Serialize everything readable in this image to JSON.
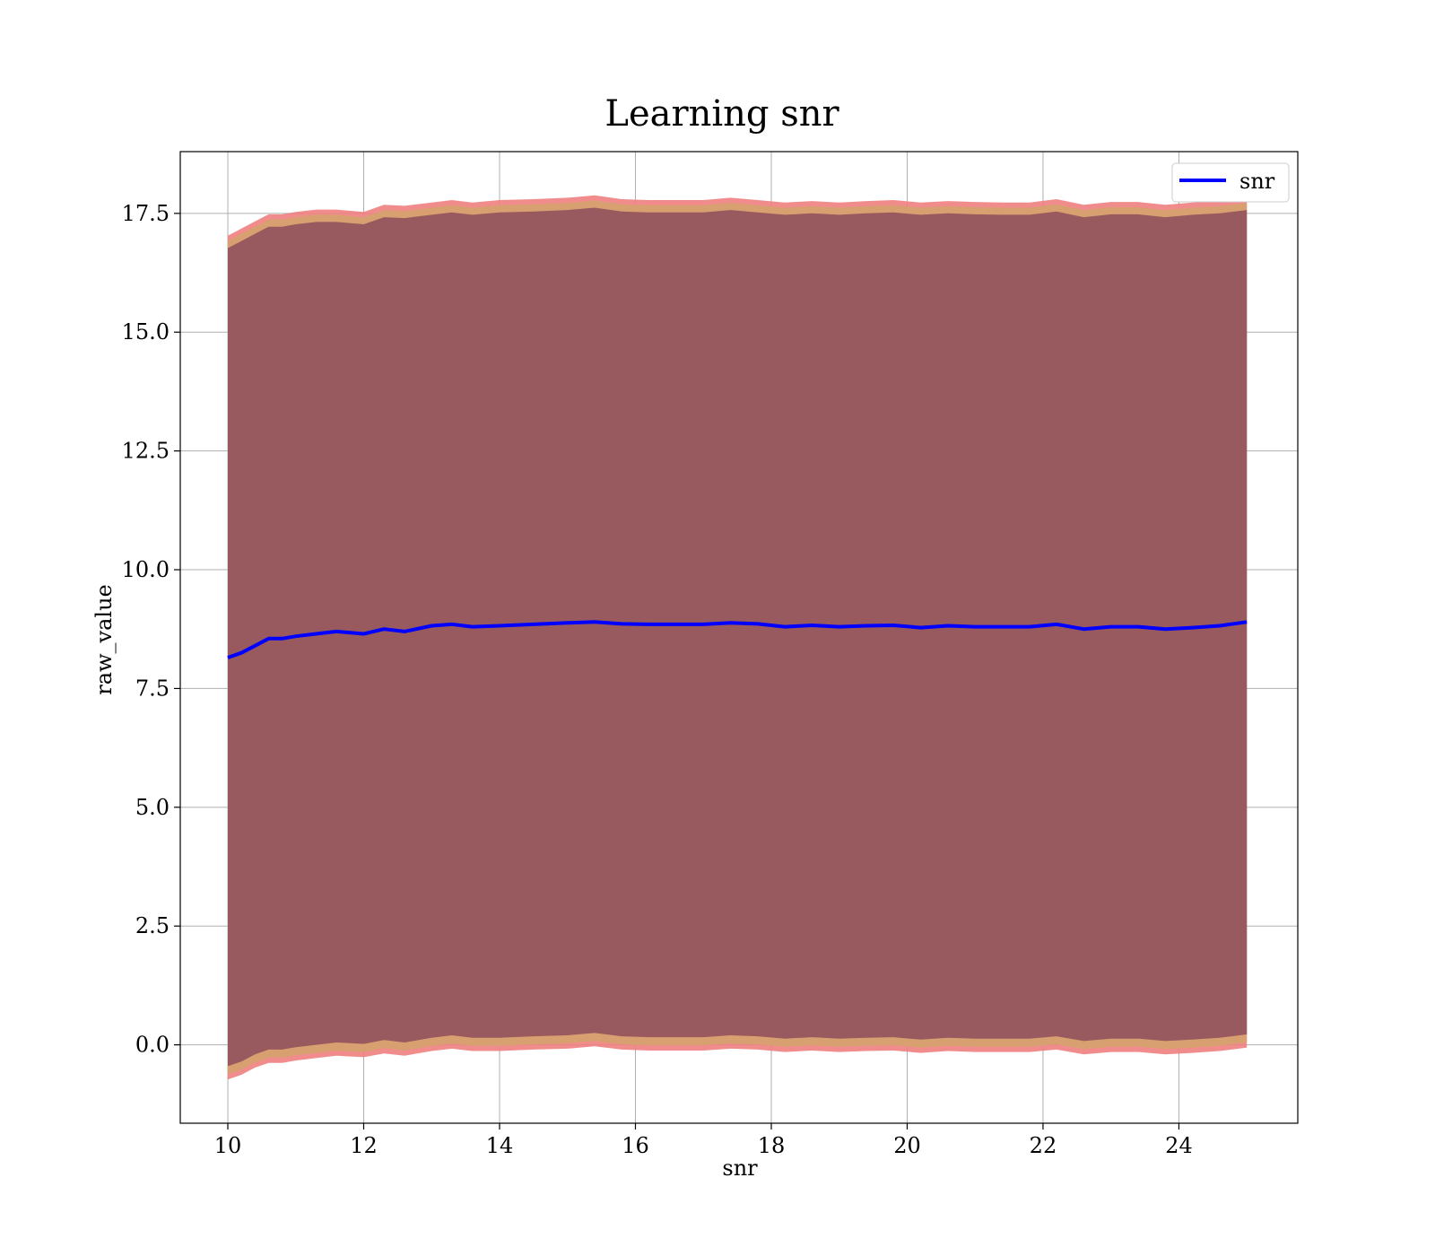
{
  "chart_data": {
    "type": "line",
    "title": "Learning snr",
    "xlabel": "snr",
    "ylabel": "raw_value",
    "xlim": [
      9.3,
      25.75
    ],
    "ylim": [
      -1.65,
      18.8
    ],
    "xticks": [
      10,
      12,
      14,
      16,
      18,
      20,
      22,
      24
    ],
    "yticks": [
      0.0,
      2.5,
      5.0,
      7.5,
      10.0,
      12.5,
      15.0,
      17.5
    ],
    "xtick_labels": [
      "10",
      "12",
      "14",
      "16",
      "18",
      "20",
      "22",
      "24"
    ],
    "ytick_labels": [
      "0.0",
      "2.5",
      "5.0",
      "7.5",
      "10.0",
      "12.5",
      "15.0",
      "17.5"
    ],
    "grid": true,
    "legend": {
      "position": "top-right",
      "entries": [
        "snr"
      ]
    },
    "colors": {
      "line": "#0000ff",
      "band_outer": "#f08080",
      "band_inner": "#d8a070",
      "band_main": "#8b4a5c",
      "grid": "#b0b0b0"
    },
    "series": [
      {
        "name": "snr",
        "x": [
          10.0,
          10.2,
          10.4,
          10.6,
          10.8,
          11.0,
          11.3,
          11.6,
          12.0,
          12.3,
          12.6,
          13.0,
          13.3,
          13.6,
          14.0,
          14.5,
          15.0,
          15.4,
          15.8,
          16.2,
          16.6,
          17.0,
          17.4,
          17.8,
          18.2,
          18.6,
          19.0,
          19.4,
          19.8,
          20.2,
          20.6,
          21.0,
          21.4,
          21.8,
          22.2,
          22.6,
          23.0,
          23.4,
          23.8,
          24.2,
          24.6,
          25.0
        ],
        "mean": [
          8.15,
          8.25,
          8.4,
          8.55,
          8.55,
          8.6,
          8.65,
          8.7,
          8.65,
          8.75,
          8.7,
          8.82,
          8.85,
          8.8,
          8.82,
          8.85,
          8.88,
          8.9,
          8.86,
          8.85,
          8.85,
          8.85,
          8.88,
          8.86,
          8.8,
          8.83,
          8.8,
          8.82,
          8.83,
          8.78,
          8.82,
          8.8,
          8.8,
          8.8,
          8.85,
          8.75,
          8.8,
          8.8,
          8.75,
          8.78,
          8.82,
          8.9
        ],
        "band_upper": [
          16.85,
          17.0,
          17.15,
          17.3,
          17.3,
          17.35,
          17.4,
          17.4,
          17.35,
          17.5,
          17.48,
          17.55,
          17.6,
          17.55,
          17.6,
          17.62,
          17.65,
          17.7,
          17.62,
          17.6,
          17.6,
          17.6,
          17.65,
          17.6,
          17.55,
          17.58,
          17.55,
          17.58,
          17.6,
          17.55,
          17.58,
          17.56,
          17.55,
          17.55,
          17.62,
          17.5,
          17.56,
          17.56,
          17.5,
          17.55,
          17.58,
          17.65
        ],
        "band_lower": [
          -0.55,
          -0.45,
          -0.3,
          -0.2,
          -0.2,
          -0.15,
          -0.1,
          -0.05,
          -0.08,
          0.0,
          -0.05,
          0.05,
          0.1,
          0.05,
          0.05,
          0.08,
          0.1,
          0.15,
          0.08,
          0.06,
          0.06,
          0.06,
          0.1,
          0.08,
          0.03,
          0.06,
          0.03,
          0.05,
          0.06,
          0.01,
          0.05,
          0.03,
          0.03,
          0.03,
          0.08,
          -0.02,
          0.03,
          0.03,
          -0.02,
          0.01,
          0.05,
          0.12
        ]
      }
    ]
  }
}
